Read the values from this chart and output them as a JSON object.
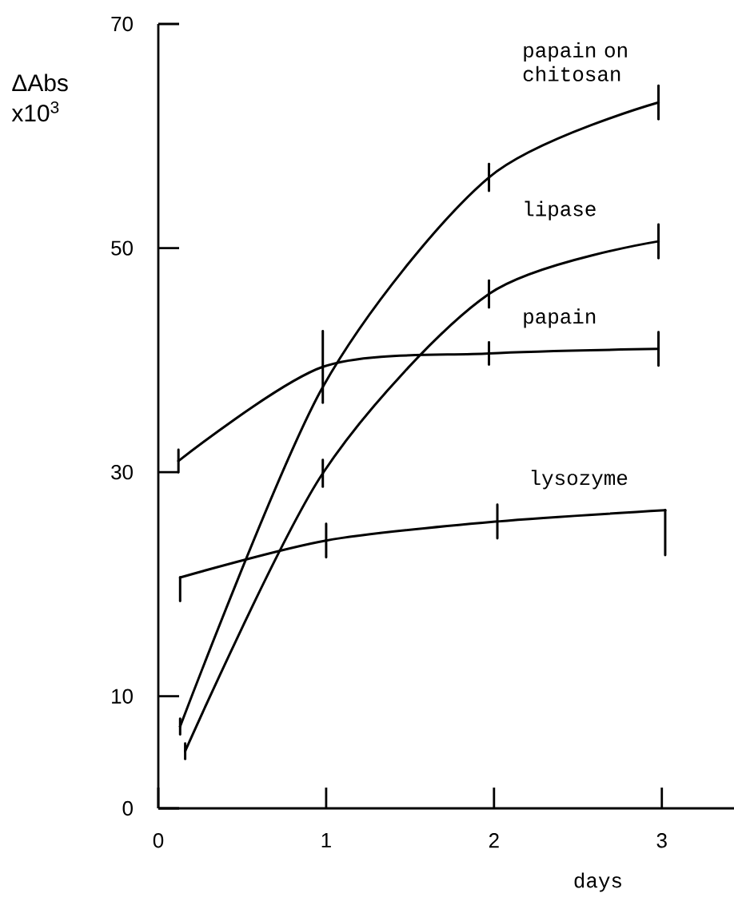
{
  "chart_data": {
    "type": "line",
    "ylabel": "ΔAbs x10$^{3}$",
    "xlabel": "days",
    "xlim": [
      0,
      3.43
    ],
    "ylim": [
      0,
      70
    ],
    "xticks": [
      0,
      1,
      2,
      3
    ],
    "yticks": [
      0,
      10,
      30,
      50,
      70
    ],
    "grid": false,
    "legend": false,
    "marker": "none",
    "line_style": "solid",
    "series": [
      {
        "name": "papain on chitosan",
        "color": "#000000",
        "x": [
          0.13,
          0.98,
          1.97,
          2.98
        ],
        "values": [
          7.3,
          37.6,
          56.3,
          63
        ],
        "errors": [
          0.7,
          null,
          1.2,
          1.5
        ]
      },
      {
        "name": "lipase",
        "color": "#000000",
        "x": [
          0.16,
          0.98,
          1.97,
          2.98
        ],
        "values": [
          5.1,
          29.9,
          45.9,
          50.6
        ],
        "errors": [
          0.7,
          1.2,
          1.2,
          1.5
        ]
      },
      {
        "name": "papain",
        "color": "#000000",
        "x": [
          0.12,
          0.98,
          1.97,
          2.98
        ],
        "values": [
          31,
          39.4,
          40.6,
          41
        ],
        "errors": [
          1,
          3.2,
          1,
          1.5
        ]
      },
      {
        "name": "lysozyme",
        "color": "#000000",
        "x": [
          0.13,
          1,
          2.02,
          3.02
        ],
        "values": [
          20.6,
          23.9,
          25.6,
          26.6
        ],
        "errors": [
          [
            18.5,
            20.6
          ],
          1.5,
          1.5,
          [
            22.6,
            26.6
          ]
        ]
      }
    ]
  }
}
